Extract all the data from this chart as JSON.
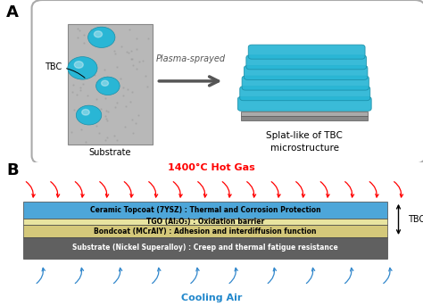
{
  "panel_A_label": "A",
  "panel_B_label": "B",
  "substrate_label": "Substrate",
  "tbc_label_A": "TBC",
  "plasma_label": "Plasma-sprayed",
  "splat_label": "Splat-like of TBC\nmicrostructure",
  "hot_gas_label": "1400°C Hot Gas",
  "hot_gas_color": "#ff0000",
  "cooling_air_label": "Cooling Air",
  "cooling_air_color": "#2288cc",
  "layer1_label": "Ceramic Topcoat (7YSZ) : Thermal and Corrosion Protection",
  "layer2_label": "TGO (Al₂O₃) : Oxidation barrier",
  "layer3_label": "Bondcoat (MCrAlY) : Adhesion and interdiffusion function",
  "layer4_label": "Substrate (Nickel Superalloy) : Creep and thermal fatigue resistance",
  "layer1_color": "#4da6d9",
  "layer2_color": "#e8e4a0",
  "layer3_color": "#d4c87a",
  "layer4_color": "#606060",
  "tbc_bracket_label": "TBC",
  "bg_color": "#ffffff",
  "substrate_gray": "#b8b8b8",
  "substrate_dark": "#909090",
  "splat_cyan": "#29b6d5",
  "splat_dark": "#1a8fa8",
  "base_gray": "#888888",
  "arrow_gray": "#555555"
}
